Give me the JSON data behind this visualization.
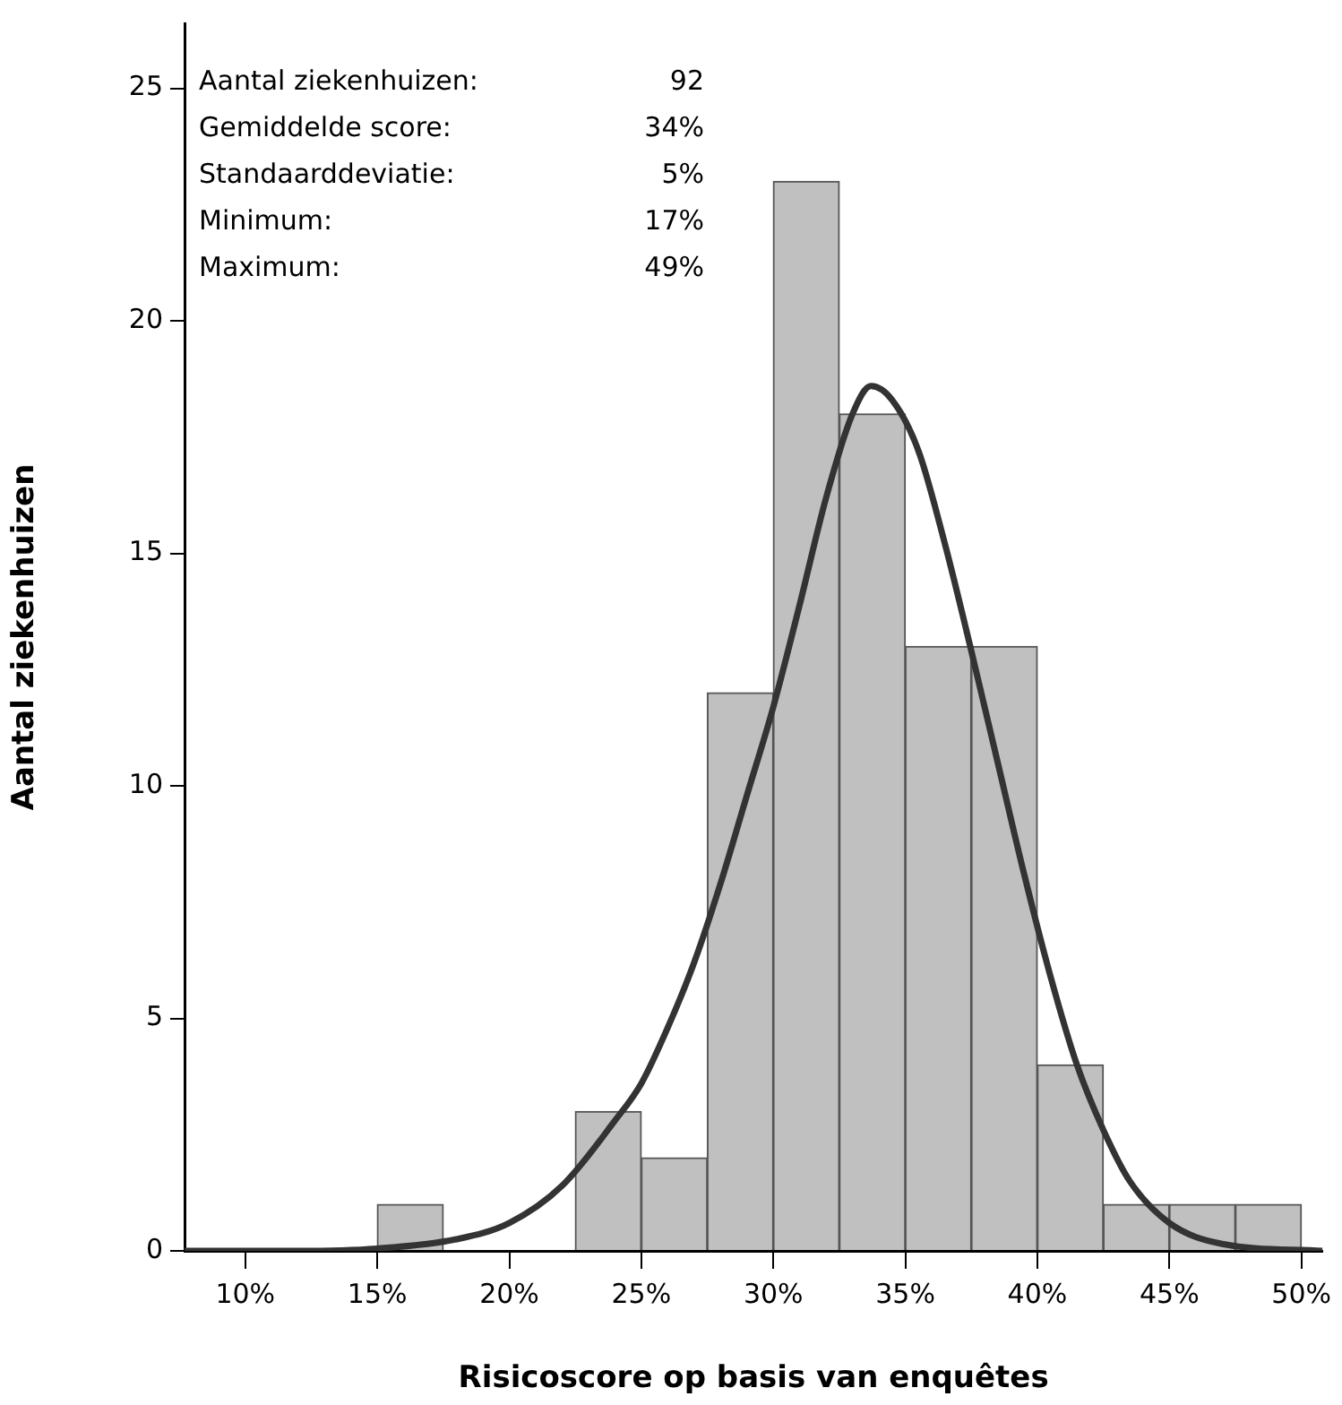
{
  "chart_data": {
    "type": "histogram",
    "xlabel": "Risicoscore op basis van enquêtes",
    "ylabel": "Aantal ziekenhuizen",
    "bins": [
      15,
      17.5,
      20,
      22.5,
      25,
      27.5,
      30,
      32.5,
      35,
      37.5,
      40,
      42.5,
      45,
      47.5,
      50
    ],
    "values": [
      1,
      0,
      0,
      3,
      2,
      12,
      23,
      18,
      13,
      13,
      4,
      1,
      1,
      1
    ],
    "color": "#c0c0c0",
    "series": [
      {
        "type": "line",
        "color": "#333333",
        "x": [
          7.7,
          12,
          15,
          18,
          20,
          22,
          24,
          25,
          26,
          27,
          28,
          29,
          30,
          31,
          32,
          33,
          33.7,
          34.5,
          35.5,
          36.5,
          37.5,
          38.5,
          39.5,
          40.5,
          41.5,
          42.5,
          43.5,
          45,
          47,
          50.8
        ],
        "values": [
          0,
          0,
          0.05,
          0.25,
          0.6,
          1.4,
          2.8,
          3.6,
          4.8,
          6.2,
          7.9,
          9.8,
          11.7,
          13.9,
          16.2,
          18,
          18.6,
          18.3,
          17.2,
          15.2,
          12.9,
          10.5,
          8.1,
          5.9,
          4,
          2.6,
          1.5,
          0.6,
          0.15,
          0
        ]
      }
    ],
    "xlim": [
      7.7,
      50.8
    ],
    "xticks": [
      {
        "value": 10,
        "label": "10%"
      },
      {
        "value": 15,
        "label": "15%"
      },
      {
        "value": 20,
        "label": "20%"
      },
      {
        "value": 25,
        "label": "25%"
      },
      {
        "value": 30,
        "label": "30%"
      },
      {
        "value": 35,
        "label": "35%"
      },
      {
        "value": 40,
        "label": "40%"
      },
      {
        "value": 45,
        "label": "45%"
      },
      {
        "value": 50,
        "label": "50%"
      }
    ],
    "ylim": [
      0,
      26.4
    ],
    "yticks": [
      0,
      5,
      10,
      15,
      20,
      25
    ],
    "grid": false,
    "legend": false,
    "marker": "none",
    "line_style": "solid",
    "annotations": [
      "Aantal ziekenhuizen:",
      "92",
      "Gemiddelde score:",
      "34%",
      "Standaarddeviatie:",
      "5%",
      "Minimum:",
      "17%",
      "Maximum:",
      "49%"
    ]
  }
}
